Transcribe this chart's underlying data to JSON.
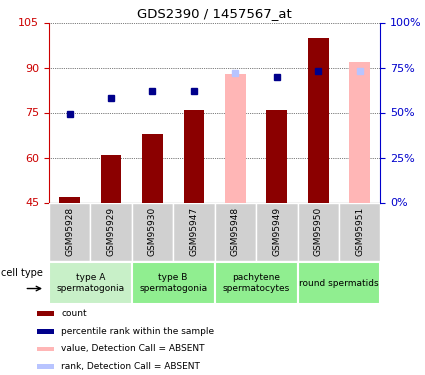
{
  "title": "GDS2390 / 1457567_at",
  "samples": [
    "GSM95928",
    "GSM95929",
    "GSM95930",
    "GSM95947",
    "GSM95948",
    "GSM95949",
    "GSM95950",
    "GSM95951"
  ],
  "bar_values_dark": [
    47,
    61,
    68,
    76,
    null,
    76,
    100,
    null
  ],
  "bar_values_light": [
    null,
    null,
    null,
    null,
    88,
    null,
    null,
    92
  ],
  "blue_squares_pct": [
    49,
    58,
    62,
    62,
    72,
    70,
    73,
    73
  ],
  "blue_square_absent": [
    false,
    false,
    false,
    false,
    true,
    false,
    false,
    true
  ],
  "ylim_left": [
    45,
    105
  ],
  "ylim_right": [
    0,
    100
  ],
  "yticks_left": [
    45,
    60,
    75,
    90,
    105
  ],
  "ytick_labels_left": [
    "45",
    "60",
    "75",
    "90",
    "105"
  ],
  "yticks_right": [
    0,
    25,
    50,
    75,
    100
  ],
  "ytick_labels_right": [
    "0%",
    "25%",
    "50%",
    "75%",
    "100%"
  ],
  "group_ranges": [
    [
      0,
      1
    ],
    [
      2,
      3
    ],
    [
      4,
      5
    ],
    [
      6,
      7
    ]
  ],
  "group_labels": [
    "type A\nspermatogonia",
    "type B\nspermatogonia",
    "pachytene\nspermatocytes",
    "round spermatids"
  ],
  "group_colors": [
    "#c8f0c8",
    "#90ee90",
    "#90ee90",
    "#90ee90"
  ],
  "dark_red": "#8b0000",
  "light_pink": "#ffb6b6",
  "dark_blue": "#00008b",
  "light_blue": "#b8c4ff",
  "gray_sample": "#d0d0d0",
  "left_axis_color": "#cc0000",
  "right_axis_color": "#0000cc",
  "bar_width": 0.5,
  "cell_type_label": "cell type"
}
